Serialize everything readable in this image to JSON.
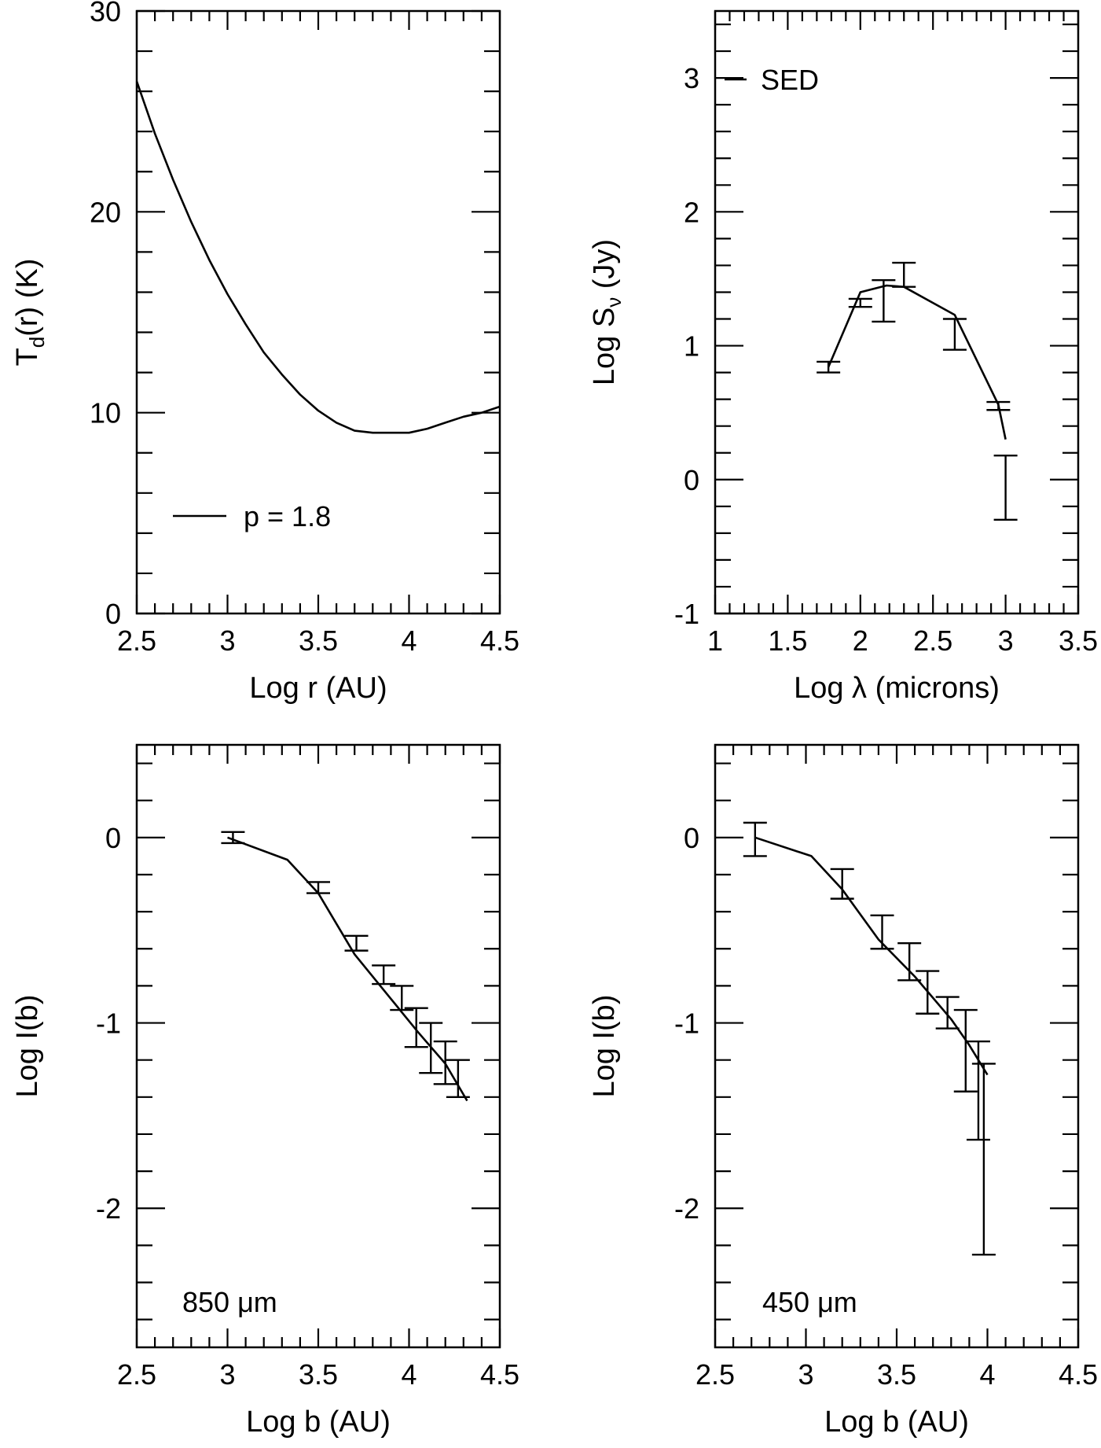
{
  "chart_data": [
    {
      "id": "temperature",
      "type": "line",
      "xlabel": "Log r (AU)",
      "ylabel_main": "T",
      "ylabel_sub": "d",
      "ylabel_rest": "(r)  (K)",
      "xlim": [
        2.5,
        4.5
      ],
      "ylim": [
        0,
        30
      ],
      "xticks": [
        2.5,
        3,
        3.5,
        4,
        4.5
      ],
      "xtick_labels": [
        "2.5",
        "3",
        "3.5",
        "4",
        "4.5"
      ],
      "yticks": [
        0,
        10,
        20,
        30
      ],
      "ytick_labels": [
        "0",
        "10",
        "20",
        "30"
      ],
      "x_minor_step": 0.1,
      "y_minor_step": 2,
      "legend_text": "p = 1.8",
      "series": [
        {
          "x": [
            2.5,
            2.6,
            2.7,
            2.8,
            2.9,
            3.0,
            3.1,
            3.2,
            3.3,
            3.4,
            3.5,
            3.6,
            3.7,
            3.8,
            3.9,
            4.0,
            4.1,
            4.2,
            4.3,
            4.4,
            4.5
          ],
          "y": [
            26.5,
            23.9,
            21.6,
            19.5,
            17.6,
            15.9,
            14.4,
            13.0,
            11.9,
            10.9,
            10.1,
            9.5,
            9.1,
            9.0,
            9.0,
            9.0,
            9.2,
            9.5,
            9.8,
            10.0,
            10.3
          ]
        }
      ],
      "errorbars": []
    },
    {
      "id": "sed",
      "type": "line",
      "xlabel": "Log  λ  (microns)",
      "ylabel_main": "Log  S",
      "ylabel_sub": "ν",
      "ylabel_rest": "  (Jy)",
      "xlim": [
        1,
        3.5
      ],
      "ylim": [
        -1,
        3.5
      ],
      "xticks": [
        1,
        1.5,
        2,
        2.5,
        3,
        3.5
      ],
      "xtick_labels": [
        "1",
        "1.5",
        "2",
        "2.5",
        "3",
        "3.5"
      ],
      "yticks": [
        -1,
        0,
        1,
        2,
        3
      ],
      "ytick_labels": [
        "-1",
        "0",
        "1",
        "2",
        "3"
      ],
      "x_minor_step": 0.1,
      "y_minor_step": 0.2,
      "legend_text": "SED",
      "series": [
        {
          "x": [
            1.78,
            2.0,
            2.18,
            2.3,
            2.65,
            2.95,
            3.0
          ],
          "y": [
            0.84,
            1.4,
            1.45,
            1.44,
            1.23,
            0.56,
            0.3
          ]
        }
      ],
      "errorbars": [
        {
          "x": 1.78,
          "y": 0.84,
          "lo": 0.8,
          "hi": 0.88
        },
        {
          "x": 2.0,
          "y": 1.32,
          "lo": 1.29,
          "hi": 1.35
        },
        {
          "x": 2.16,
          "y": 1.34,
          "lo": 1.18,
          "hi": 1.49
        },
        {
          "x": 2.3,
          "y": 1.53,
          "lo": 1.44,
          "hi": 1.62
        },
        {
          "x": 2.65,
          "y": 1.1,
          "lo": 0.97,
          "hi": 1.2
        },
        {
          "x": 2.95,
          "y": 0.55,
          "lo": 0.52,
          "hi": 0.58
        },
        {
          "x": 3.0,
          "y": -0.06,
          "lo": -0.3,
          "hi": 0.18
        }
      ]
    },
    {
      "id": "profile-850",
      "type": "line",
      "xlabel": "Log b (AU)",
      "ylabel_main": "Log I(b)",
      "ylabel_sub": "",
      "ylabel_rest": "",
      "xlim": [
        2.5,
        4.5
      ],
      "ylim": [
        -2.75,
        0.5
      ],
      "xticks": [
        2.5,
        3,
        3.5,
        4,
        4.5
      ],
      "xtick_labels": [
        "2.5",
        "3",
        "3.5",
        "4",
        "4.5"
      ],
      "yticks": [
        -2,
        -1,
        0
      ],
      "ytick_labels": [
        "-2",
        "-1",
        "0"
      ],
      "x_minor_step": 0.1,
      "y_minor_step": 0.2,
      "legend_text": "850  μm",
      "series": [
        {
          "x": [
            3.0,
            3.33,
            3.5,
            3.7,
            3.9,
            4.05,
            4.2,
            4.32
          ],
          "y": [
            0.0,
            -0.12,
            -0.3,
            -0.63,
            -0.87,
            -1.05,
            -1.22,
            -1.42
          ]
        }
      ],
      "errorbars": [
        {
          "x": 3.03,
          "y": 0.0,
          "lo": -0.03,
          "hi": 0.03
        },
        {
          "x": 3.5,
          "y": -0.27,
          "lo": -0.3,
          "hi": -0.24
        },
        {
          "x": 3.71,
          "y": -0.57,
          "lo": -0.61,
          "hi": -0.53
        },
        {
          "x": 3.86,
          "y": -0.74,
          "lo": -0.79,
          "hi": -0.69
        },
        {
          "x": 3.96,
          "y": -0.86,
          "lo": -0.93,
          "hi": -0.8
        },
        {
          "x": 4.04,
          "y": -1.02,
          "lo": -1.13,
          "hi": -0.92
        },
        {
          "x": 4.12,
          "y": -1.13,
          "lo": -1.27,
          "hi": -1.0
        },
        {
          "x": 4.2,
          "y": -1.21,
          "lo": -1.33,
          "hi": -1.1
        },
        {
          "x": 4.27,
          "y": -1.3,
          "lo": -1.4,
          "hi": -1.2
        }
      ]
    },
    {
      "id": "profile-450",
      "type": "line",
      "xlabel": "Log b (AU)",
      "ylabel_main": "Log I(b)",
      "ylabel_sub": "",
      "ylabel_rest": "",
      "xlim": [
        2.5,
        4.5
      ],
      "ylim": [
        -2.75,
        0.5
      ],
      "xticks": [
        2.5,
        3,
        3.5,
        4,
        4.5
      ],
      "xtick_labels": [
        "2.5",
        "3",
        "3.5",
        "4",
        "4.5"
      ],
      "yticks": [
        -2,
        -1,
        0
      ],
      "ytick_labels": [
        "-2",
        "-1",
        "0"
      ],
      "x_minor_step": 0.1,
      "y_minor_step": 0.2,
      "legend_text": "450  μm",
      "series": [
        {
          "x": [
            2.72,
            3.03,
            3.2,
            3.4,
            3.6,
            3.8,
            3.9,
            4.0
          ],
          "y": [
            0.0,
            -0.1,
            -0.28,
            -0.55,
            -0.75,
            -0.98,
            -1.12,
            -1.28
          ]
        }
      ],
      "errorbars": [
        {
          "x": 2.72,
          "y": -0.01,
          "lo": -0.1,
          "hi": 0.08
        },
        {
          "x": 3.2,
          "y": -0.25,
          "lo": -0.33,
          "hi": -0.17
        },
        {
          "x": 3.42,
          "y": -0.51,
          "lo": -0.6,
          "hi": -0.42
        },
        {
          "x": 3.57,
          "y": -0.67,
          "lo": -0.77,
          "hi": -0.57
        },
        {
          "x": 3.67,
          "y": -0.83,
          "lo": -0.95,
          "hi": -0.72
        },
        {
          "x": 3.78,
          "y": -0.94,
          "lo": -1.03,
          "hi": -0.86
        },
        {
          "x": 3.88,
          "y": -1.12,
          "lo": -1.37,
          "hi": -0.93
        },
        {
          "x": 3.95,
          "y": -1.37,
          "lo": -1.63,
          "hi": -1.1
        },
        {
          "x": 3.98,
          "y": -1.73,
          "lo": -2.25,
          "hi": -1.22
        }
      ]
    }
  ]
}
